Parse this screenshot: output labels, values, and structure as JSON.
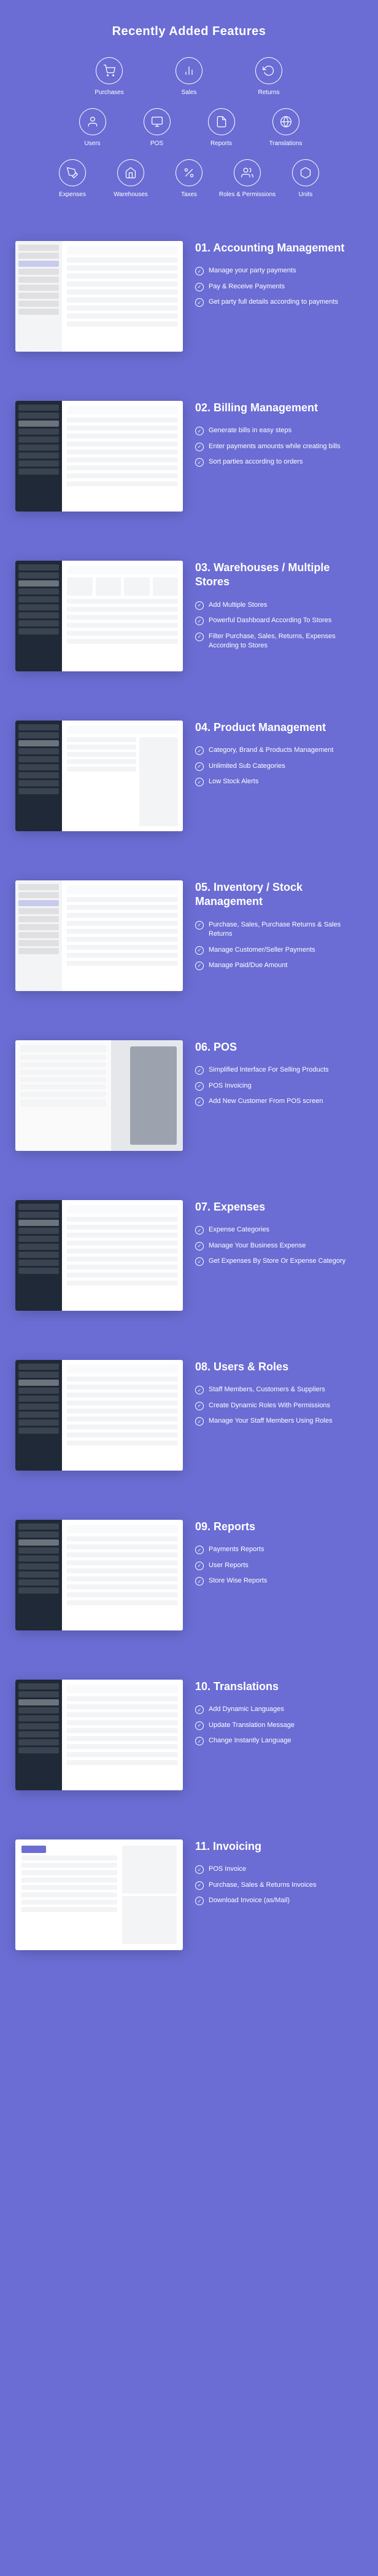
{
  "header": {
    "title": "Recently Added Features"
  },
  "icons": {
    "row1": [
      {
        "name": "purchases-icon",
        "label": "Purchases"
      },
      {
        "name": "sales-icon",
        "label": "Sales"
      },
      {
        "name": "returns-icon",
        "label": "Returns"
      }
    ],
    "row2": [
      {
        "name": "users-icon",
        "label": "Users"
      },
      {
        "name": "pos-icon",
        "label": "POS"
      },
      {
        "name": "reports-icon",
        "label": "Reports"
      },
      {
        "name": "translations-icon",
        "label": "Translations"
      }
    ],
    "row3": [
      {
        "name": "expenses-icon",
        "label": "Expenses"
      },
      {
        "name": "warehouses-icon",
        "label": "Warehouses"
      },
      {
        "name": "taxes-icon",
        "label": "Taxes"
      },
      {
        "name": "roles-icon",
        "label": "Roles & Permissions"
      },
      {
        "name": "units-icon",
        "label": "Units"
      }
    ]
  },
  "features": [
    {
      "title": "01. Accounting Management",
      "points": [
        "Manage your party payments",
        "Pay & Receive Payments",
        "Get party full details according to payments"
      ]
    },
    {
      "title": "02. Billing Management",
      "points": [
        "Generate bills in easy steps",
        "Enter payments amounts while creating bills",
        "Sort parties according to orders"
      ]
    },
    {
      "title": "03. Warehouses / Multiple Stores",
      "points": [
        "Add Multiple Stores",
        "Powerful Dashboard According To Stores",
        "Filter Purchase, Sales, Returns, Expenses According to Stores"
      ]
    },
    {
      "title": "04. Product Management",
      "points": [
        "Category, Brand & Products Management",
        "Unlimited Sub Categories",
        "Low Stock Alerts"
      ]
    },
    {
      "title": "05. Inventory / Stock Management",
      "points": [
        "Purchase, Sales, Purchase Returns & Sales Returns",
        "Manage Customer/Seller Payments",
        "Manage Paid/Due Amount"
      ]
    },
    {
      "title": "06. POS",
      "points": [
        "Simplified Interface For Selling Products",
        "POS Invoicing",
        "Add New Customer From POS screen"
      ]
    },
    {
      "title": "07. Expenses",
      "points": [
        "Expense Categories",
        "Manage Your Business Expense",
        "Get Expenses By Store Or Expense Category"
      ]
    },
    {
      "title": "08. Users & Roles",
      "points": [
        "Staff Members, Customers & Suppliers",
        "Create Dynamic Roles With Permissions",
        "Manage Your Staff Members Using Roles"
      ]
    },
    {
      "title": "09. Reports",
      "points": [
        "Payments Reports",
        "User Reports",
        "Store Wise Reports"
      ]
    },
    {
      "title": "10. Translations",
      "points": [
        "Add Dynamic Languages",
        "Update Translation Message",
        "Change Instantly Language"
      ]
    },
    {
      "title": "11. Invoicing",
      "points": [
        "POS Invoice",
        "Purchase, Sales & Returns Invoices",
        "Download Invoice (as/Mail)"
      ]
    }
  ],
  "styling": {
    "background_color": "#6b6dd4",
    "text_color": "#ffffff",
    "screenshot_bg": "#ffffff",
    "sidebar_dark": "#1f2937",
    "sidebar_light": "#f3f4f6",
    "mock_row_bg": "#f3f4f6"
  }
}
